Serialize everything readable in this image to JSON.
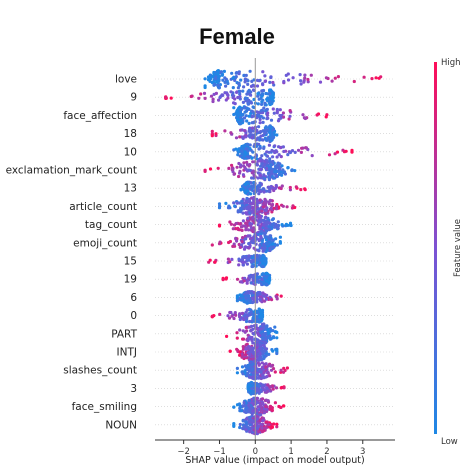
{
  "chart_data": {
    "type": "beeswarm",
    "title": "Female",
    "xlabel": "SHAP value (impact on model output)",
    "xlim": [
      -2.8,
      3.9
    ],
    "xticks": [
      -2,
      -1,
      0,
      1,
      2,
      3
    ],
    "colorbar": {
      "label": "Feature value",
      "high": "High",
      "low": "Low",
      "low_color": "#1e88e5",
      "high_color": "#ff0d57"
    },
    "features": [
      {
        "name": "love",
        "min": -1.4,
        "max": 3.5,
        "mode": -1.0,
        "width": 9
      },
      {
        "name": "9",
        "min": -2.5,
        "max": 0.5,
        "mode": 0.4,
        "width": 8
      },
      {
        "name": "face_affection",
        "min": -0.6,
        "max": 2.0,
        "mode": -0.4,
        "width": 9
      },
      {
        "name": "18",
        "min": -1.2,
        "max": 0.6,
        "mode": 0.4,
        "width": 8
      },
      {
        "name": "10",
        "min": -0.6,
        "max": 2.7,
        "mode": -0.2,
        "width": 8
      },
      {
        "name": "exclamation_mark_count",
        "min": -1.4,
        "max": 1.1,
        "mode": 0.3,
        "width": 10
      },
      {
        "name": "13",
        "min": -0.4,
        "max": 1.4,
        "mode": -0.2,
        "width": 6
      },
      {
        "name": "article_count",
        "min": -1.0,
        "max": 1.1,
        "mode": 0.0,
        "width": 9
      },
      {
        "name": "tag_count",
        "min": -1.0,
        "max": 1.0,
        "mode": 0.1,
        "width": 9
      },
      {
        "name": "emoji_count",
        "min": -1.2,
        "max": 0.7,
        "mode": 0.3,
        "width": 9
      },
      {
        "name": "15",
        "min": -1.3,
        "max": 0.3,
        "mode": 0.2,
        "width": 6
      },
      {
        "name": "19",
        "min": -0.9,
        "max": 0.4,
        "mode": 0.3,
        "width": 6
      },
      {
        "name": "6",
        "min": -0.5,
        "max": 0.9,
        "mode": -0.2,
        "width": 6
      },
      {
        "name": "0",
        "min": -1.2,
        "max": 0.2,
        "mode": 0.1,
        "width": 7
      },
      {
        "name": "PART",
        "min": -0.8,
        "max": 0.6,
        "mode": 0.2,
        "width": 10
      },
      {
        "name": "INTJ",
        "min": -0.7,
        "max": 0.6,
        "mode": 0.0,
        "width": 10
      },
      {
        "name": "slashes_count",
        "min": -0.5,
        "max": 0.9,
        "mode": 0.0,
        "width": 9
      },
      {
        "name": "3",
        "min": -0.2,
        "max": 0.8,
        "mode": -0.1,
        "width": 6
      },
      {
        "name": "face_smiling",
        "min": -0.6,
        "max": 0.8,
        "mode": 0.0,
        "width": 9
      },
      {
        "name": "NOUN",
        "min": -0.6,
        "max": 0.6,
        "mode": 0.0,
        "width": 9
      }
    ]
  }
}
